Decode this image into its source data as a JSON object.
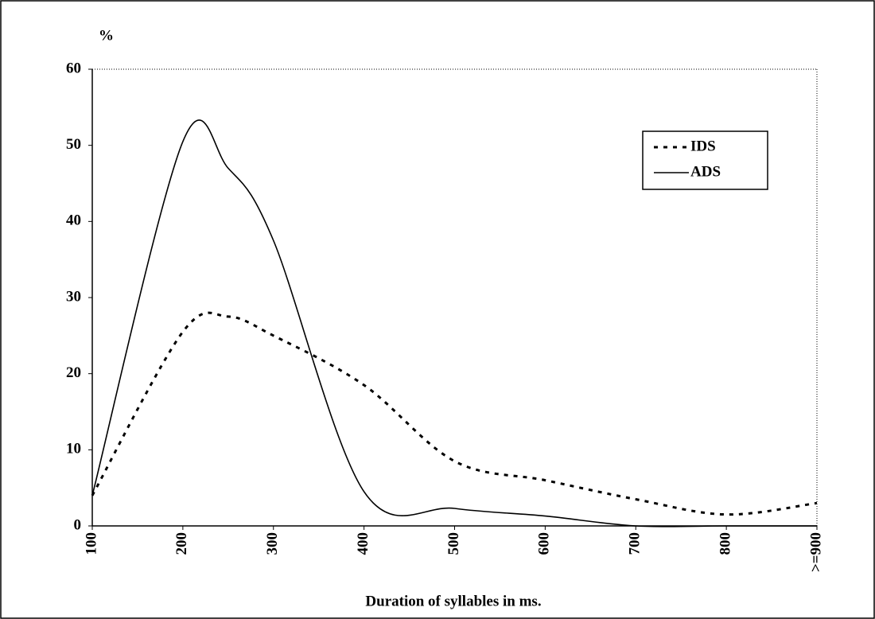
{
  "chart_data": {
    "type": "line",
    "ylabel": "%",
    "xlabel": "Duration of syllables in ms.",
    "x": [
      100,
      200,
      250,
      300,
      400,
      500,
      600,
      700,
      800,
      900
    ],
    "series": [
      {
        "name": "IDS",
        "color": "#000000",
        "dash": true,
        "values": [
          4,
          25.5,
          27.5,
          25,
          18.5,
          8.5,
          6,
          3.5,
          1.5,
          3
        ]
      },
      {
        "name": "ADS",
        "color": "#000000",
        "dash": false,
        "values": [
          4,
          50.5,
          47,
          37.5,
          4.5,
          2.3,
          1.3,
          0,
          0,
          0
        ]
      }
    ],
    "xlim": [
      100,
      900
    ],
    "xticks": [
      100,
      200,
      300,
      400,
      500,
      600,
      700,
      800,
      {
        "value": 900,
        "label": ">=900"
      }
    ],
    "ylim": [
      0,
      60
    ],
    "yticks": [
      0,
      10,
      20,
      30,
      40,
      50,
      60
    ],
    "legend": "upper right"
  }
}
